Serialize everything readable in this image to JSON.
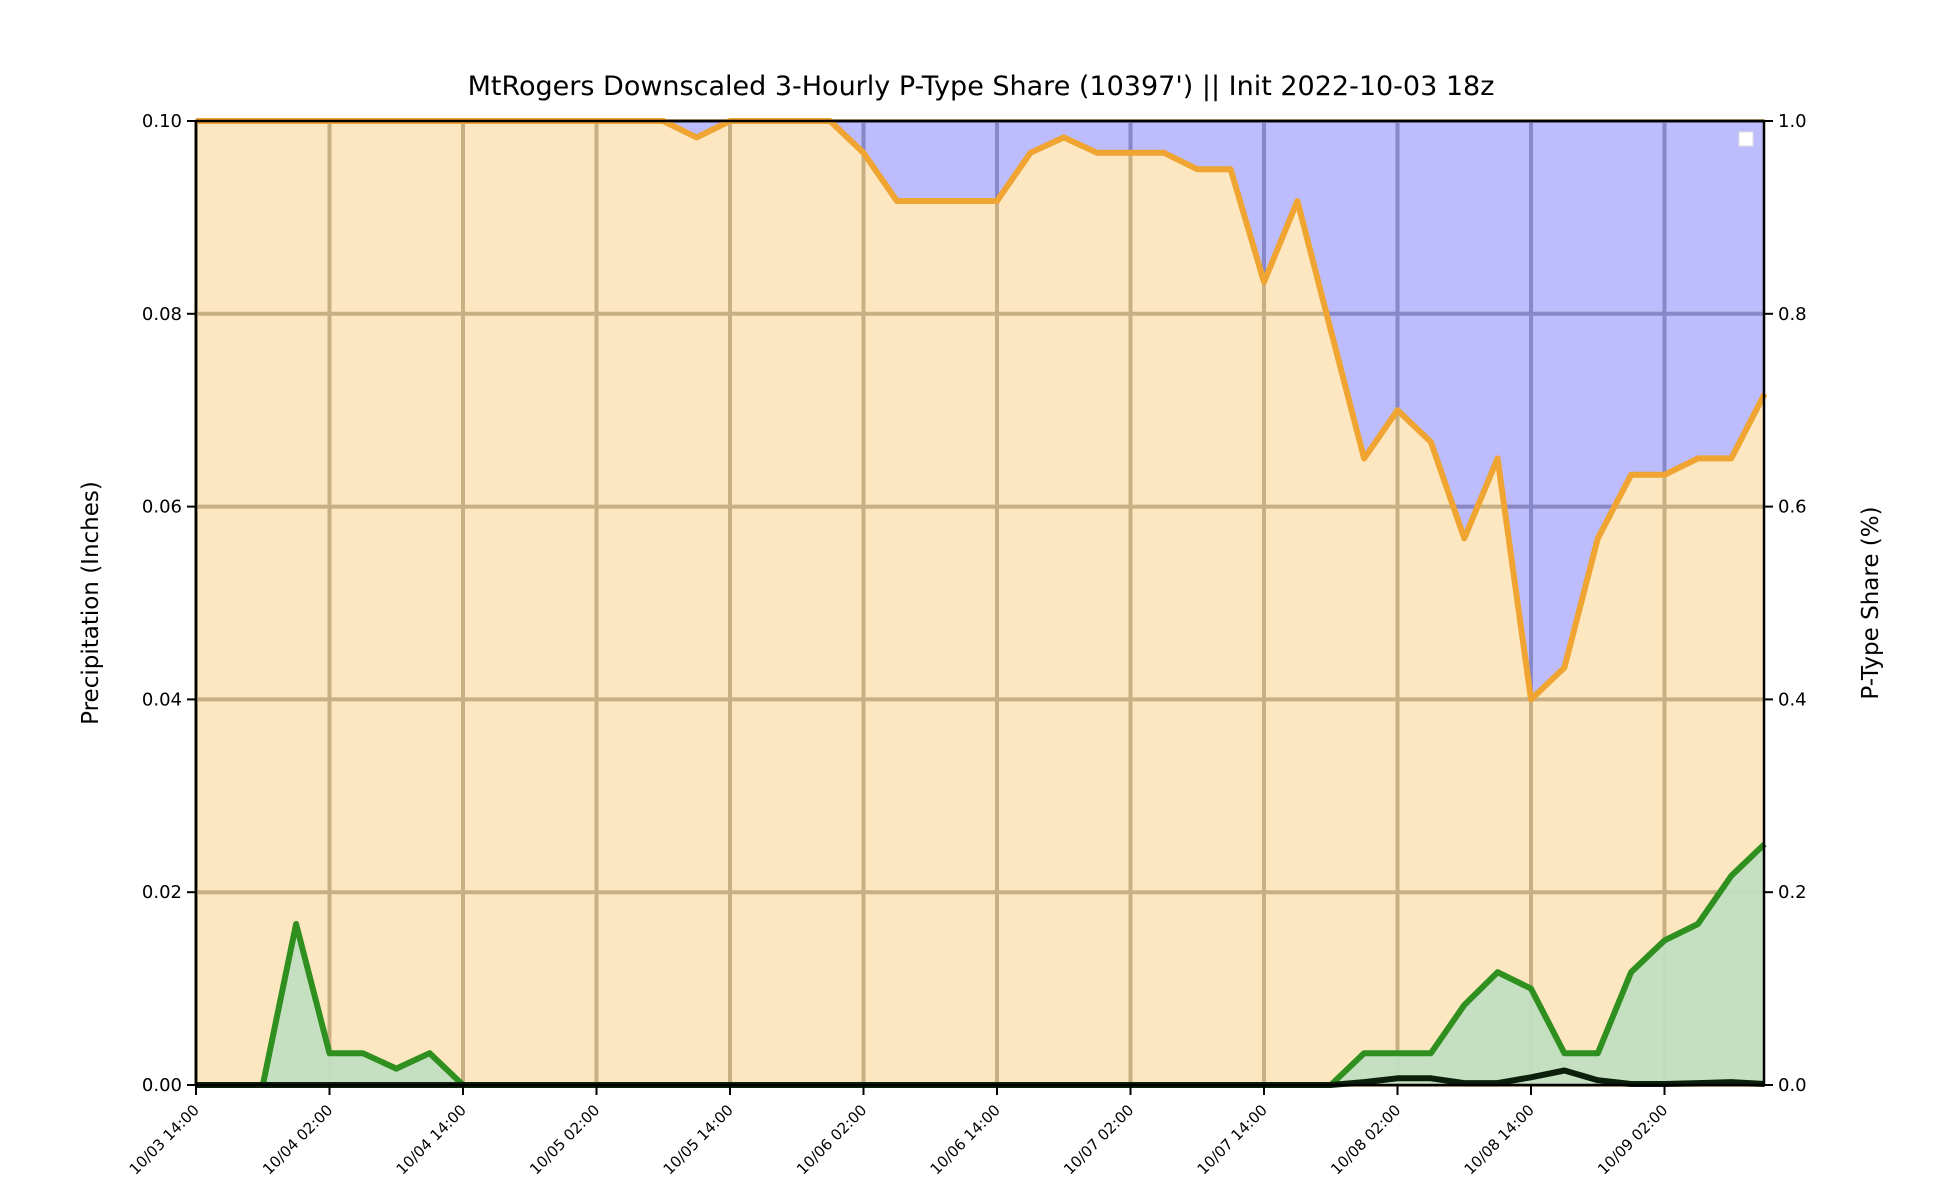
{
  "chart_data": {
    "type": "area",
    "title": "MtRogers Downscaled 3-Hourly P-Type Share (10397') || Init 2022-10-03 18z",
    "ylabel_left": "Precipitation (Inches)",
    "ylabel_right": "P-Type Share (%)",
    "ylim_left": [
      0,
      0.1
    ],
    "ylim_right": [
      0,
      1.0
    ],
    "yticks_left": [
      "0.00",
      "0.02",
      "0.04",
      "0.06",
      "0.08",
      "0.10"
    ],
    "yticks_right": [
      "0.0",
      "0.2",
      "0.4",
      "0.6",
      "0.8",
      "1.0"
    ],
    "xticks": [
      "10/03 14:00",
      "10/04 02:00",
      "10/04 14:00",
      "10/05 02:00",
      "10/05 14:00",
      "10/06 02:00",
      "10/06 14:00",
      "10/07 02:00",
      "10/07 14:00",
      "10/08 02:00",
      "10/08 14:00",
      "10/09 02:00"
    ],
    "x_hours_from_first_tick": [
      0,
      3,
      6,
      9,
      12,
      15,
      18,
      21,
      24,
      27,
      30,
      33,
      36,
      39,
      42,
      45,
      48,
      51,
      54,
      57,
      60,
      63,
      66,
      69,
      72,
      75,
      78,
      81,
      84,
      87,
      90,
      93,
      96,
      99,
      102,
      105,
      108,
      111,
      114,
      117,
      120,
      123,
      126,
      129,
      132,
      135,
      138,
      141
    ],
    "grid": true,
    "legend": "top-right, empty",
    "colors": {
      "rain_fill": "#fde7c0",
      "rain_line": "#f0a431",
      "snow_fill": "#bdbdfd",
      "precip_fill": "#c1dfc1",
      "precip_line": "#2f8f1f",
      "frozen_line": "#0b1f0b",
      "grid_light": "#c8b084",
      "grid_dark": "#8888c8"
    },
    "series": [
      {
        "name": "rain_share",
        "axis": "right",
        "values": [
          1.0,
          1.0,
          1.0,
          1.0,
          1.0,
          1.0,
          1.0,
          1.0,
          1.0,
          1.0,
          1.0,
          1.0,
          1.0,
          1.0,
          1.0,
          0.983,
          1.0,
          1.0,
          1.0,
          1.0,
          0.967,
          0.917,
          0.917,
          0.917,
          0.917,
          0.967,
          0.983,
          0.967,
          0.967,
          0.967,
          0.95,
          0.95,
          0.833,
          0.917,
          0.783,
          0.65,
          0.7,
          0.667,
          0.567,
          0.65,
          0.4,
          0.433,
          0.567,
          0.633,
          0.633,
          0.65,
          0.65,
          0.717
        ]
      },
      {
        "name": "total_precip",
        "axis": "left",
        "values": [
          0,
          0,
          0,
          0.0167,
          0.0033,
          0.0033,
          0.0017,
          0.0033,
          0,
          0,
          0,
          0,
          0,
          0,
          0,
          0,
          0,
          0,
          0,
          0,
          0,
          0,
          0,
          0,
          0,
          0,
          0,
          0,
          0,
          0,
          0,
          0,
          0,
          0,
          0,
          0.0033,
          0.0033,
          0.0033,
          0.0083,
          0.0117,
          0.01,
          0.0033,
          0.0033,
          0.0117,
          0.015,
          0.0167,
          0.0217,
          0.025
        ]
      },
      {
        "name": "frozen_precip",
        "axis": "left",
        "values": [
          0,
          0,
          0,
          0,
          0,
          0,
          0,
          0,
          0,
          0,
          0,
          0,
          0,
          0,
          0,
          0,
          0,
          0,
          0,
          0,
          0,
          0,
          0,
          0,
          0,
          0,
          0,
          0,
          0,
          0,
          0,
          0,
          0,
          0,
          0,
          0.0003,
          0.0007,
          0.0007,
          0.0002,
          0.0002,
          0.0008,
          0.0015,
          0.0005,
          0.0001,
          0.0001,
          0.0002,
          0.0003,
          0.0001
        ]
      }
    ]
  }
}
